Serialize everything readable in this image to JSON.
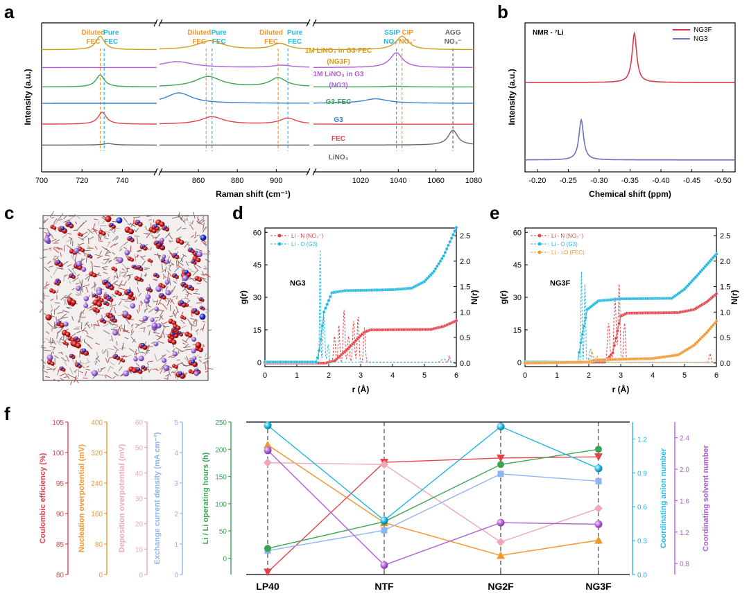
{
  "panel_labels": {
    "a": "a",
    "b": "b",
    "c": "c",
    "d": "d",
    "e": "e",
    "f": "f"
  },
  "colors": {
    "red": "#e2434b",
    "orange": "#f0962d",
    "pink": "#f1a7b6",
    "lightblue": "#8fb4f0",
    "green": "#3aa356",
    "cyan": "#1fb7e0",
    "purple": "#b15fd6",
    "gold": "#d29b1b",
    "blue": "#3a7fd0",
    "gray": "#666666",
    "nmr_red": "#d93a4a",
    "nmr_blue": "#6a72bd"
  },
  "chart_data": [
    {
      "id": "a",
      "type": "line",
      "title": "",
      "xlabel": "Raman shift (cm⁻¹)",
      "ylabel": "Intensity (a.u.)",
      "x_segments": [
        [
          700,
          757
        ],
        [
          840,
          917
        ],
        [
          995,
          1080
        ]
      ],
      "xticks": [
        700,
        720,
        740,
        860,
        880,
        900,
        1020,
        1040,
        1060,
        1080
      ],
      "xtick_labels": [
        "700",
        "720",
        "740",
        "860",
        "880",
        "900",
        "1020",
        "1040",
        "1060",
        "1080"
      ],
      "series": [
        {
          "name": "1M LiNO₃ in G3-FEC",
          "sub": "(NG3F)",
          "color": "#d29b1b",
          "baseline": 0.82,
          "peaks": [
            [
              729,
              0.09,
              2.5
            ],
            [
              866,
              0.06,
              8
            ],
            [
              902,
              0.04,
              5
            ],
            [
              1042,
              0.09,
              4
            ]
          ]
        },
        {
          "name": "1M LiNO₃ in G3",
          "sub": "(NG3)",
          "color": "#b15fd6",
          "baseline": 0.7,
          "peaks": [
            [
              849,
              0.04,
              10
            ],
            [
              903,
              0.015,
              6
            ],
            [
              1039,
              0.1,
              4
            ]
          ]
        },
        {
          "name": "G3-FEC",
          "sub": "",
          "color": "#3aa356",
          "baseline": 0.57,
          "peaks": [
            [
              729,
              0.08,
              2.5
            ],
            [
              865,
              0.07,
              8
            ],
            [
              901,
              0.06,
              5
            ],
            [
              1038,
              0.005,
              5
            ]
          ]
        },
        {
          "name": "G3",
          "sub": "",
          "color": "#3a7fd0",
          "baseline": 0.46,
          "peaks": [
            [
              850,
              0.07,
              8
            ],
            [
              1028,
              0.03,
              8
            ]
          ]
        },
        {
          "name": "FEC",
          "sub": "",
          "color": "#e2434b",
          "baseline": 0.32,
          "peaks": [
            [
              730,
              0.08,
              2.5
            ],
            [
              867,
              0.05,
              7
            ],
            [
              906,
              0.04,
              5
            ]
          ]
        },
        {
          "name": "LiNO₃",
          "sub": "",
          "color": "#666666",
          "baseline": 0.18,
          "peaks": [
            [
              733,
              0.01,
              3
            ],
            [
              1069,
              0.1,
              3
            ]
          ]
        }
      ],
      "markers": [
        {
          "x": 729,
          "l1": "Diluted",
          "l2": "FEC",
          "color": "#f0962d"
        },
        {
          "x": 731,
          "l1": "Pure",
          "l2": "FEC",
          "color": "#1fb7e0"
        },
        {
          "x": 864,
          "l1": "Diluted",
          "l2": "FEC",
          "color": "#f0962d"
        },
        {
          "x": 867,
          "l1": "Pure",
          "l2": "FEC",
          "color": "#1fb7e0"
        },
        {
          "x": 901,
          "l1": "Diluted",
          "l2": "FEC",
          "color": "#f0962d"
        },
        {
          "x": 906,
          "l1": "Pure",
          "l2": "FEC",
          "color": "#1fb7e0"
        },
        {
          "x": 1039,
          "l1": "SSIP",
          "l2": "NO₃⁻",
          "color": "#1fb7e0"
        },
        {
          "x": 1042,
          "l1": "CIP",
          "l2": "NO₃⁻",
          "color": "#f0962d"
        },
        {
          "x": 1069,
          "l1": "AGG",
          "l2": "NO₃⁻",
          "color": "#666666"
        }
      ]
    },
    {
      "id": "b",
      "type": "line",
      "xlabel": "Chemical shift (ppm)",
      "ylabel": "Intensity (a.u.)",
      "xlim": [
        -0.18,
        -0.52
      ],
      "xticks": [
        -0.2,
        -0.25,
        -0.3,
        -0.35,
        -0.4,
        -0.45,
        -0.5
      ],
      "xtick_labels": [
        "-0.20",
        "-0.25",
        "-0.30",
        "-0.35",
        "-0.40",
        "-0.45",
        "-0.50"
      ],
      "annotation": "NMR - ⁷Li",
      "series": [
        {
          "name": "NG3F",
          "color": "#d93a4a",
          "center": -0.357,
          "width": 0.0045,
          "baseline": 0.6,
          "height": 0.33
        },
        {
          "name": "NG3",
          "color": "#6a72bd",
          "center": -0.271,
          "width": 0.0045,
          "baseline": 0.08,
          "height": 0.27
        }
      ]
    },
    {
      "id": "c",
      "type": "other",
      "description": ""
    },
    {
      "id": "d",
      "type": "line",
      "annotation": "NG3",
      "xlabel": "r (Å)",
      "ylabel": "g(r)",
      "y2label": "N(r)",
      "xlim": [
        0,
        6
      ],
      "ylim": [
        -2,
        62
      ],
      "y2lim": [
        -0.07,
        2.65
      ],
      "xticks": [
        0,
        1,
        2,
        3,
        4,
        5,
        6
      ],
      "yticks": [
        0,
        15,
        30,
        45,
        60
      ],
      "y2ticks": [
        0.0,
        0.5,
        1.0,
        1.5,
        2.0,
        2.5
      ],
      "series": [
        {
          "name": "Li - N (NO₃⁻)",
          "color": "#e2434b",
          "g_peaks": [
            [
              2.18,
              12,
              0.04
            ],
            [
              2.32,
              17,
              0.035
            ],
            [
              2.48,
              24,
              0.04
            ],
            [
              2.62,
              12,
              0.04
            ],
            [
              2.78,
              19,
              0.04
            ],
            [
              2.92,
              21,
              0.04
            ],
            [
              3.12,
              16,
              0.04
            ],
            [
              5.78,
              3,
              0.03
            ]
          ],
          "n_points": [
            [
              0,
              0
            ],
            [
              1.9,
              0
            ],
            [
              2.2,
              0.05
            ],
            [
              2.6,
              0.28
            ],
            [
              3.1,
              0.6
            ],
            [
              3.3,
              0.65
            ],
            [
              5.2,
              0.66
            ],
            [
              5.6,
              0.72
            ],
            [
              6,
              0.83
            ]
          ]
        },
        {
          "name": "Li - O (G3)",
          "color": "#1fb7e0",
          "g_peaks": [
            [
              1.73,
              52,
              0.025
            ],
            [
              1.85,
              21,
              0.04
            ],
            [
              1.98,
              8,
              0.04
            ],
            [
              5.6,
              1.5,
              0.1
            ]
          ],
          "n_points": [
            [
              0,
              0.02
            ],
            [
              1.62,
              0.02
            ],
            [
              1.72,
              0.3
            ],
            [
              1.85,
              1.0
            ],
            [
              2.1,
              1.38
            ],
            [
              2.5,
              1.42
            ],
            [
              4.0,
              1.44
            ],
            [
              4.6,
              1.47
            ],
            [
              5.0,
              1.6
            ],
            [
              5.3,
              1.8
            ],
            [
              5.6,
              2.1
            ],
            [
              5.85,
              2.45
            ],
            [
              6,
              2.66
            ]
          ]
        }
      ]
    },
    {
      "id": "e",
      "type": "line",
      "annotation": "NG3F",
      "xlabel": "r (Å)",
      "ylabel": "g(r)",
      "y2label": "N(r)",
      "xlim": [
        0,
        6
      ],
      "ylim": [
        -2,
        62
      ],
      "y2lim": [
        -0.07,
        2.65
      ],
      "xticks": [
        0,
        1,
        2,
        3,
        4,
        5,
        6
      ],
      "yticks": [
        0,
        15,
        30,
        45,
        60
      ],
      "y2ticks": [
        0.0,
        0.5,
        1.0,
        1.5,
        2.0,
        2.5
      ],
      "series": [
        {
          "name": "Li - N (NO₃⁻)",
          "color": "#e2434b",
          "g_peaks": [
            [
              2.62,
              18,
              0.05
            ],
            [
              2.82,
              30,
              0.05
            ],
            [
              2.95,
              36,
              0.04
            ],
            [
              3.12,
              18,
              0.04
            ],
            [
              5.8,
              4,
              0.04
            ]
          ],
          "n_points": [
            [
              0,
              0
            ],
            [
              2.5,
              0.02
            ],
            [
              2.75,
              0.2
            ],
            [
              3.0,
              0.92
            ],
            [
              3.2,
              0.98
            ],
            [
              4.8,
              0.99
            ],
            [
              5.3,
              1.05
            ],
            [
              5.7,
              1.2
            ],
            [
              6,
              1.36
            ]
          ]
        },
        {
          "name": "Li - O (G3)",
          "color": "#1fb7e0",
          "g_peaks": [
            [
              1.77,
              42,
              0.025
            ],
            [
              1.88,
              36,
              0.03
            ],
            [
              2.05,
              6,
              0.05
            ]
          ],
          "n_points": [
            [
              0,
              0.02
            ],
            [
              1.65,
              0.02
            ],
            [
              1.75,
              0.4
            ],
            [
              1.95,
              1.05
            ],
            [
              2.3,
              1.22
            ],
            [
              3.0,
              1.26
            ],
            [
              4.6,
              1.27
            ],
            [
              5.0,
              1.45
            ],
            [
              5.4,
              1.72
            ],
            [
              5.8,
              2.0
            ],
            [
              6,
              2.14
            ]
          ]
        },
        {
          "name": "Li - =O (FEC)",
          "color": "#f0962d",
          "g_peaks": [
            [
              2.1,
              5,
              0.05
            ],
            [
              2.25,
              3,
              0.05
            ]
          ],
          "n_points": [
            [
              0,
              0
            ],
            [
              2.0,
              0.02
            ],
            [
              2.2,
              0.06
            ],
            [
              4.0,
              0.09
            ],
            [
              4.8,
              0.16
            ],
            [
              5.3,
              0.35
            ],
            [
              5.7,
              0.6
            ],
            [
              6,
              0.82
            ]
          ]
        }
      ]
    },
    {
      "id": "f",
      "type": "line",
      "categories": [
        "LP40",
        "NTF",
        "NG2F",
        "NG3F"
      ],
      "axes": [
        {
          "label": "Coulombic efficiency (%)",
          "color": "#e2434b",
          "ticks": [
            "80",
            "85",
            "90",
            "95",
            "100",
            "105"
          ],
          "min": 80,
          "max": 105
        },
        {
          "label": "Nucleation overpotential (mV)",
          "color": "#f0962d",
          "ticks": [
            "0",
            "80",
            "160",
            "240",
            "320",
            "400"
          ],
          "min": 0,
          "max": 400
        },
        {
          "label": "Deposition overpotential (mV)",
          "color": "#f1a7b6",
          "ticks": [
            "0",
            "10",
            "20",
            "30",
            "40",
            "50",
            "60"
          ],
          "min": 0,
          "max": 60
        },
        {
          "label": "Exchange current density (mA cm⁻²)",
          "color": "#8fb4f0",
          "ticks": [
            "0",
            "1",
            "2",
            "3",
            "4",
            "5"
          ],
          "min": 0,
          "max": 5
        },
        {
          "label": "Li / Li operating hours (h)",
          "color": "#3aa356",
          "ticks": [
            "0",
            "50",
            "100",
            "150",
            "200",
            "250"
          ],
          "min": -30,
          "max": 250
        },
        {
          "label": "Coordinating anion number",
          "color": "#1fb7e0",
          "ticks": [
            "0.0",
            "0.3",
            "0.6",
            "0.9",
            "1.2"
          ],
          "min": 0,
          "max": 1.35
        },
        {
          "label": "Coordinating solvent number",
          "color": "#b15fd6",
          "ticks": [
            "0.8",
            "1.2",
            "1.6",
            "2.0",
            "2.4"
          ],
          "min": 0.66,
          "max": 2.6
        }
      ],
      "series": [
        {
          "name": "Coulombic efficiency",
          "axis": 0,
          "color": "#e2434b",
          "marker": "tri-down",
          "values": [
            80.4,
            98.4,
            99.1,
            99.3
          ]
        },
        {
          "name": "Nucleation overpotential",
          "axis": 1,
          "color": "#f0962d",
          "marker": "tri-up",
          "values": [
            340,
            136,
            50,
            90
          ]
        },
        {
          "name": "Deposition overpotential",
          "axis": 2,
          "color": "#f1a7b6",
          "marker": "diamond",
          "values": [
            44,
            43.3,
            12.8,
            26
          ]
        },
        {
          "name": "Exchange current density",
          "axis": 3,
          "color": "#8fb4f0",
          "marker": "square",
          "values": [
            0.78,
            1.45,
            3.3,
            3.06
          ]
        },
        {
          "name": "Li / Li operating hours",
          "axis": 4,
          "color": "#3aa356",
          "marker": "circle",
          "values": [
            18,
            67,
            172,
            200
          ]
        },
        {
          "name": "Coordinating anion number",
          "axis": 5,
          "color": "#1fb7e0",
          "marker": "sphere",
          "values": [
            1.32,
            0.48,
            1.31,
            0.94
          ]
        },
        {
          "name": "Coordinating solvent number",
          "axis": 6,
          "color": "#b15fd6",
          "marker": "sphere",
          "values": [
            2.24,
            0.78,
            1.32,
            1.3
          ]
        }
      ]
    }
  ]
}
